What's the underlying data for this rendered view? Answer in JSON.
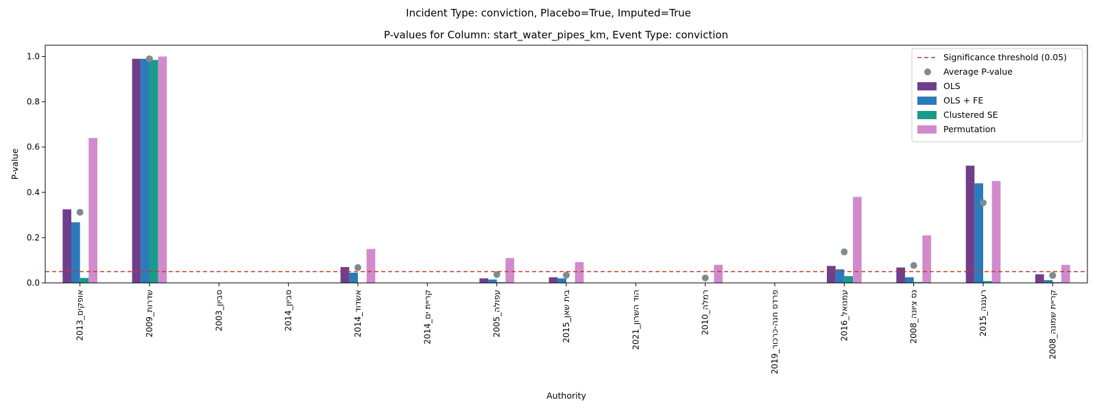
{
  "chart_data": {
    "type": "bar",
    "suptitle": "Incident Type: conviction, Placebo=True, Imputed=True",
    "title": "P-values for Column: start_water_pipes_km, Event Type: conviction",
    "xlabel": "Authority",
    "ylabel": "P-value",
    "ylim": [
      0,
      1.05
    ],
    "yticks": [
      "0.0",
      "0.2",
      "0.4",
      "0.6",
      "0.8",
      "1.0"
    ],
    "grid": false,
    "legend_position": "top-right",
    "categories": [
      "אופקים_2013",
      "שדרות_2009",
      "סביון_2003",
      "סביון_2014",
      "אשדוד_2014",
      "קריית ים_2014",
      "עפולה_2005",
      "בית שאן_2015",
      "הוד השרון_2021",
      "רמלה_2010",
      "פרדס חנה-כרכור_2019",
      "עמנואל_2016",
      "נס ציונה_2008",
      "רעננה_2015",
      "קריית שמונה_2008"
    ],
    "series": [
      {
        "name": "OLS",
        "color": "#6f3f8c",
        "values": [
          0.325,
          0.99,
          0,
          0,
          0.07,
          0,
          0.02,
          0.025,
          0,
          0,
          0,
          0.075,
          0.068,
          0.518,
          0.038
        ]
      },
      {
        "name": "OLS + FE",
        "color": "#2b7bba",
        "values": [
          0.268,
          0.99,
          0,
          0,
          0.045,
          0,
          0.015,
          0.02,
          0,
          0,
          0,
          0.06,
          0.025,
          0.44,
          0.012
        ]
      },
      {
        "name": "Clustered SE",
        "color": "#1a9b8a",
        "values": [
          0.022,
          0.985,
          0,
          0,
          0,
          0,
          0.003,
          0,
          0,
          0,
          0,
          0.03,
          0.004,
          0.008,
          0.003
        ]
      },
      {
        "name": "Permutation",
        "color": "#d18bcc",
        "values": [
          0.64,
          1.0,
          0,
          0,
          0.15,
          0,
          0.11,
          0.092,
          0,
          0.08,
          0,
          0.38,
          0.21,
          0.45,
          0.08
        ]
      }
    ],
    "average": {
      "name": "Average P-value",
      "color": "#7f8c8d",
      "values": [
        0.312,
        0.99,
        null,
        null,
        0.068,
        null,
        0.037,
        0.034,
        null,
        0.022,
        null,
        0.137,
        0.077,
        0.354,
        0.033
      ]
    },
    "threshold": {
      "name": "Significance threshold (0.05)",
      "value": 0.05,
      "color": "#c0392b"
    }
  }
}
